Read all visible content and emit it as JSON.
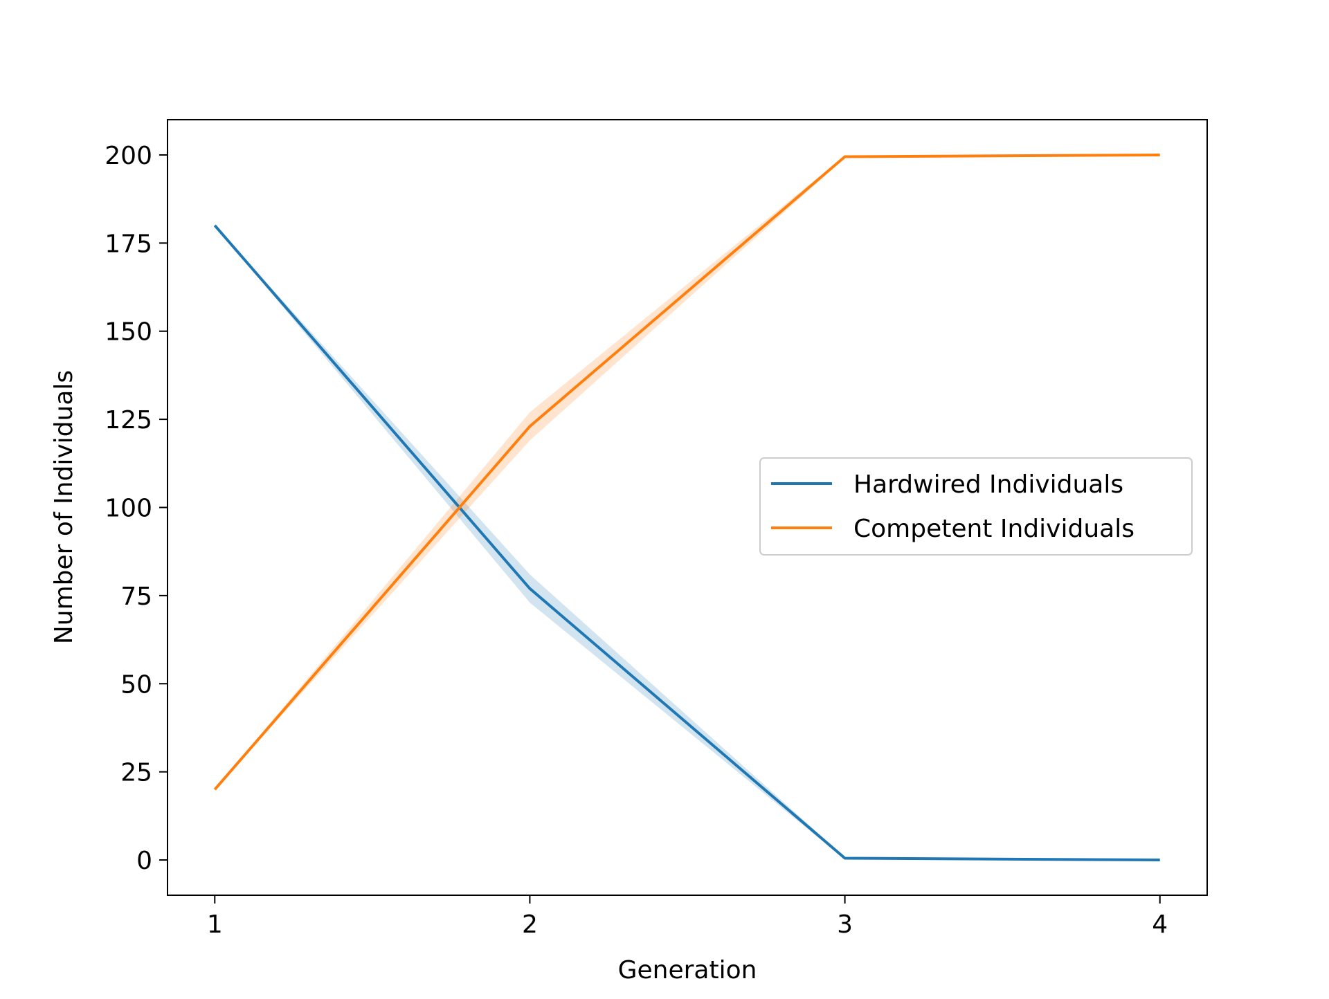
{
  "chart_data": {
    "type": "line",
    "title": "",
    "xlabel": "Generation",
    "ylabel": "Number of Individuals",
    "x": [
      1,
      2,
      3,
      4
    ],
    "xticks": [
      1,
      2,
      3,
      4
    ],
    "xlim": [
      0.85,
      4.15
    ],
    "yticks": [
      0,
      25,
      50,
      75,
      100,
      125,
      150,
      175,
      200
    ],
    "ylim": [
      -10,
      210
    ],
    "grid": false,
    "legend_position": "center-right",
    "series": [
      {
        "name": "Hardwired Individuals",
        "color": "#1f77b4",
        "values": [
          180,
          77,
          0.5,
          0
        ],
        "lower": [
          180,
          73,
          0.2,
          0
        ],
        "upper": [
          180,
          81,
          0.8,
          0
        ]
      },
      {
        "name": "Competent Individuals",
        "color": "#ff7f0e",
        "values": [
          20,
          123,
          199.5,
          200
        ],
        "lower": [
          20,
          119,
          199.2,
          200
        ],
        "upper": [
          20,
          127,
          199.8,
          200
        ]
      }
    ]
  }
}
